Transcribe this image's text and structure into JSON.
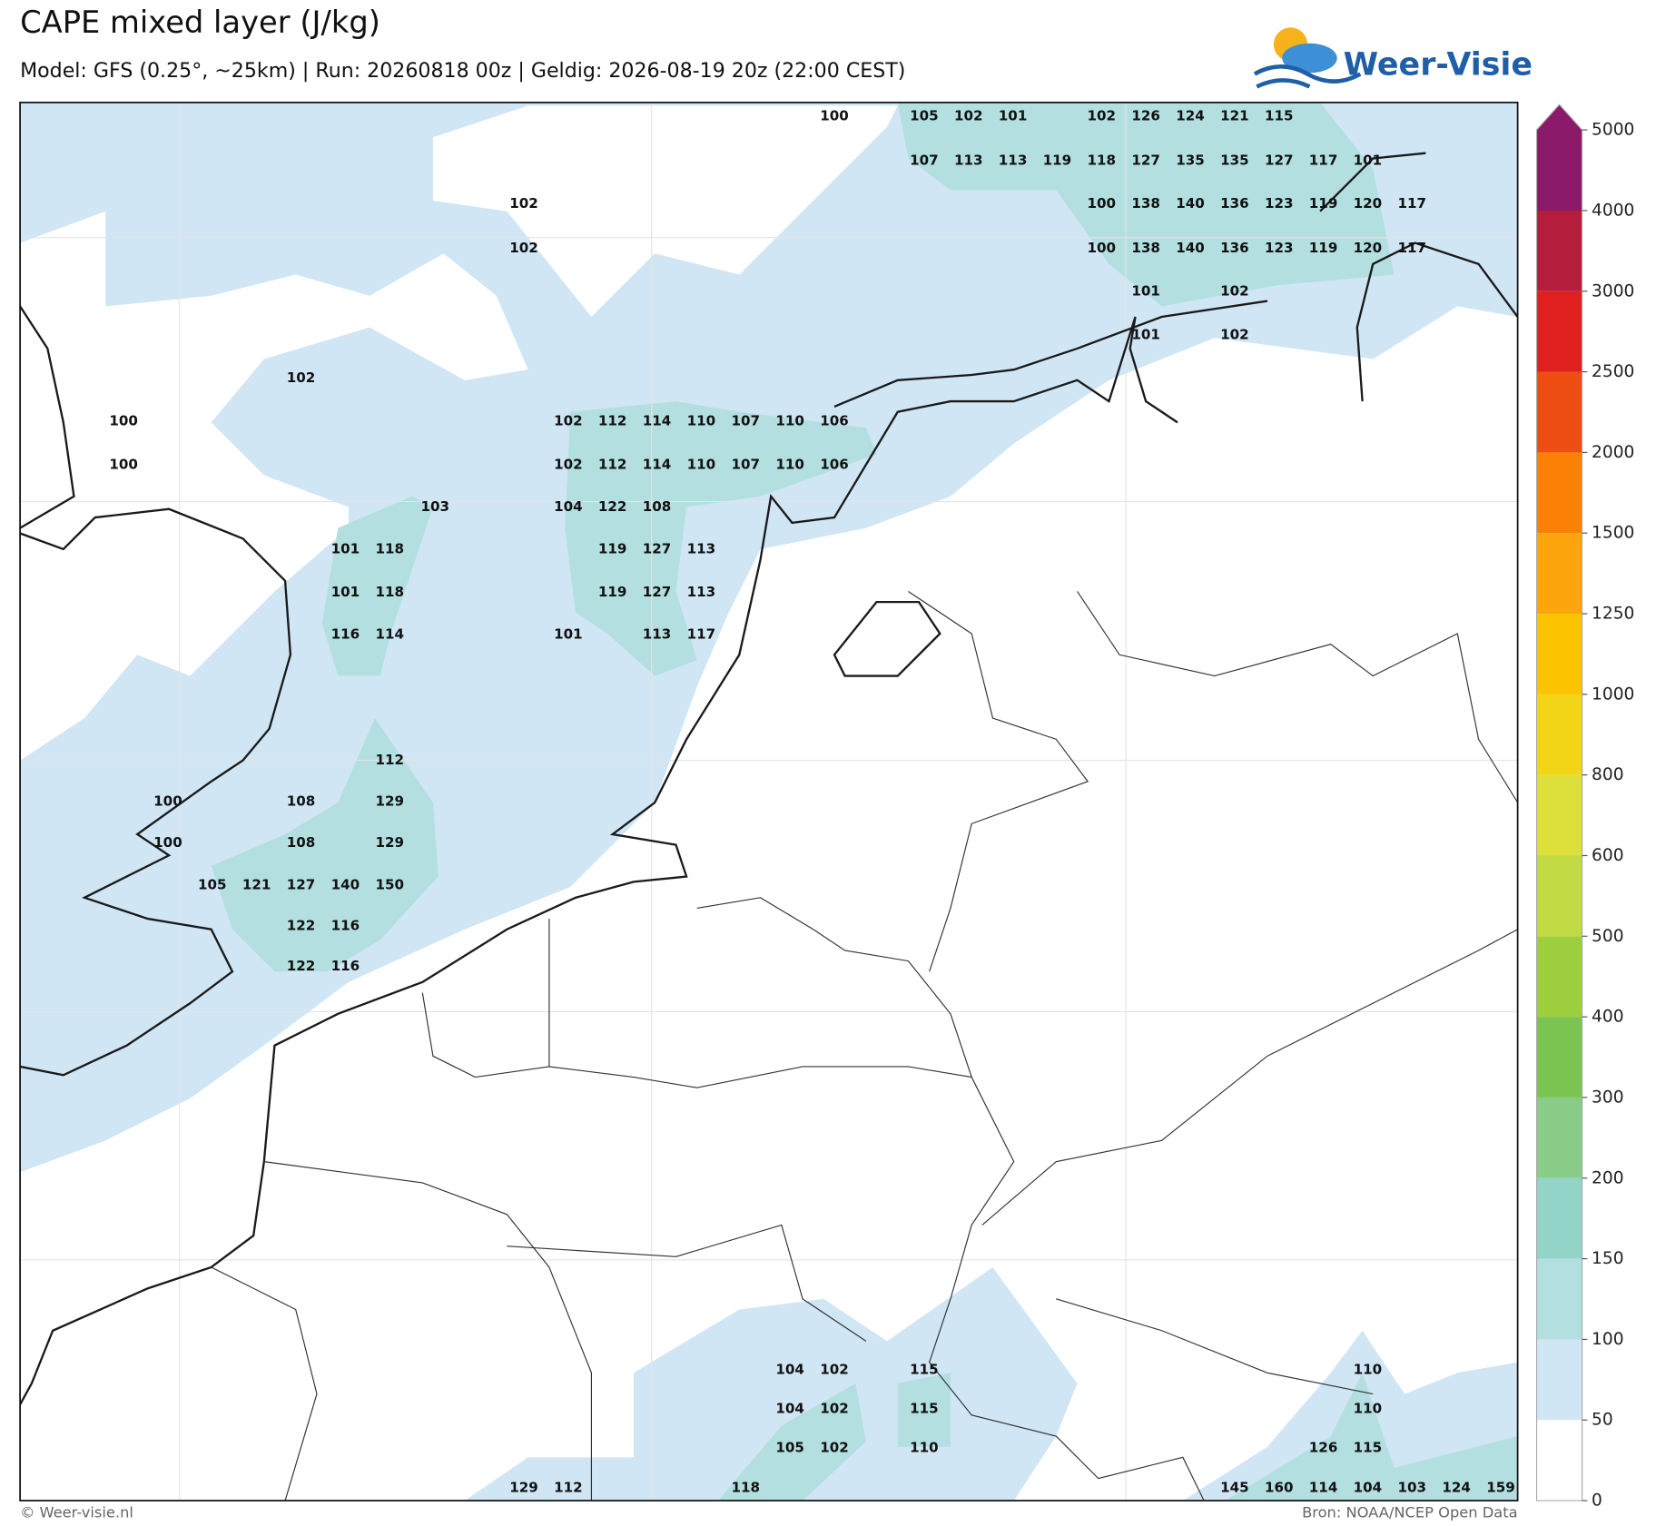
{
  "title": "CAPE mixed layer (J/kg)",
  "subtitle": "Model: GFS (0.25°, ~25km)  |  Run: 20260818 00z  |  Geldig: 2026-08-19 20z (22:00 CEST)",
  "logo": "Weer-Visie",
  "copyright": "© Weer-visie.nl",
  "source": "Bron: NOAA/NCEP Open Data",
  "grid_labels": [
    [
      100,
      105,
      102,
      101,
      102,
      126,
      124,
      121,
      115
    ],
    [
      107,
      113,
      113,
      119,
      118,
      127,
      135,
      135,
      127,
      117,
      101
    ],
    [
      102,
      100,
      138,
      140,
      136,
      123,
      119,
      120,
      117
    ],
    [
      102,
      100,
      138,
      140,
      136,
      123,
      119,
      120,
      117
    ],
    [
      101,
      102
    ],
    [
      101,
      102
    ],
    [
      102
    ],
    [
      100,
      102,
      112,
      114,
      110,
      107,
      110,
      106
    ],
    [
      100,
      102,
      112,
      114,
      110,
      107,
      110,
      106
    ],
    [
      103,
      104,
      122,
      108
    ],
    [
      101,
      118,
      119,
      127,
      113
    ],
    [
      101,
      118,
      119,
      127,
      113
    ],
    [
      116,
      114,
      101,
      113,
      117
    ],
    [
      112
    ],
    [
      100,
      108,
      129
    ],
    [
      100,
      108,
      129
    ],
    [
      105,
      121,
      127,
      140,
      150
    ],
    [
      122,
      116
    ],
    [
      122,
      116
    ],
    [
      104,
      102,
      115,
      110
    ],
    [
      104,
      102,
      115,
      110
    ],
    [
      105,
      102,
      110,
      126,
      115
    ],
    [
      129,
      112,
      118,
      145,
      160,
      114,
      104,
      103,
      124,
      159
    ]
  ],
  "colorbar": {
    "ticks": [
      0,
      50,
      100,
      150,
      200,
      300,
      400,
      500,
      600,
      800,
      1000,
      1250,
      1500,
      2000,
      2500,
      3000,
      4000,
      5000
    ],
    "colors": [
      "#ffffff",
      "#d0e6f5",
      "#b3dfe0",
      "#93d3c8",
      "#88cc88",
      "#7cc451",
      "#9cce3d",
      "#c2db44",
      "#dde03a",
      "#f1d516",
      "#fcc400",
      "#fca50d",
      "#fb8106",
      "#ee4e12",
      "#e01f1f",
      "#b51d3d",
      "#8c1a6a"
    ]
  }
}
